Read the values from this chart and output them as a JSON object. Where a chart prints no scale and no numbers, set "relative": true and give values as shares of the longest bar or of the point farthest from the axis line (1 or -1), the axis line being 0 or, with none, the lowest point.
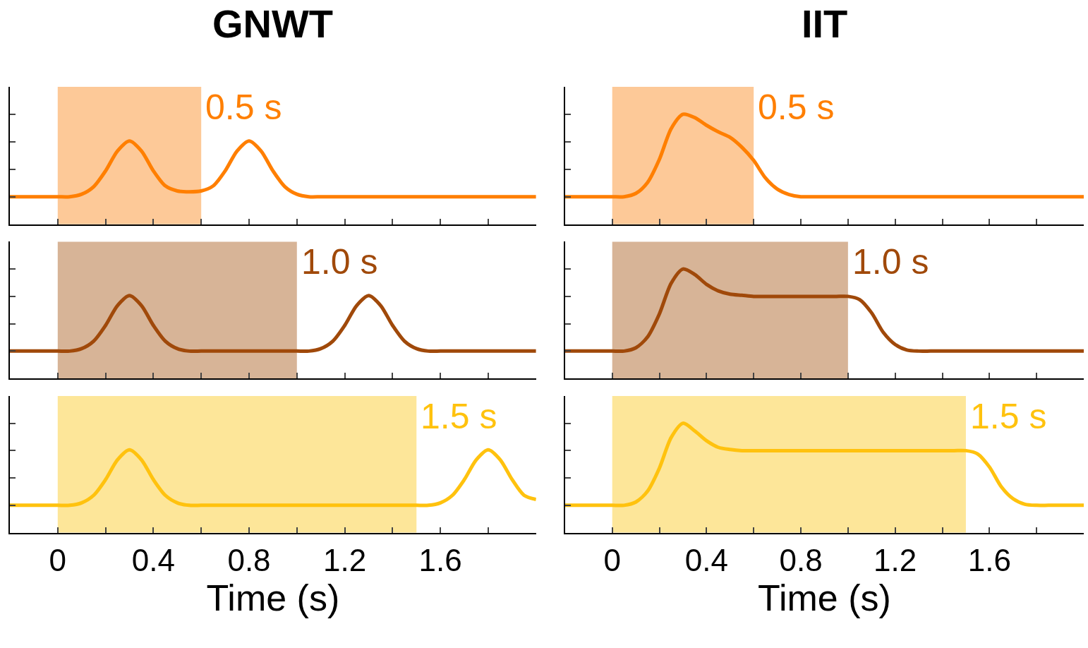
{
  "chart_data": [
    {
      "type": "line",
      "title": "GNWT",
      "relative": true,
      "tick_labels": false,
      "xlim": [
        -0.2,
        2.0
      ],
      "xticks": [
        0,
        {
          "value": 0.2,
          "label": null
        },
        0.4,
        {
          "value": 0.6,
          "label": null
        },
        0.8,
        {
          "value": 1.0,
          "label": null
        },
        1.2,
        {
          "value": 1.4,
          "label": null
        },
        1.6,
        {
          "value": 1.8,
          "label": null
        }
      ],
      "x": [
        -0.2,
        -0.15,
        -0.1,
        -0.05,
        0,
        0.05,
        0.1,
        0.15,
        0.2,
        0.25,
        0.3,
        0.35,
        0.4,
        0.45,
        0.5,
        0.55,
        0.6,
        0.65,
        0.7,
        0.75,
        0.8,
        0.85,
        0.9,
        0.95,
        1.0,
        1.05,
        1.1,
        1.15,
        1.2,
        1.25,
        1.3,
        1.35,
        1.4,
        1.45,
        1.5,
        1.55,
        1.6,
        1.65,
        1.7,
        1.75,
        1.8,
        1.85,
        1.9,
        1.95,
        2.0
      ],
      "series": [
        {
          "color": "#ff7f00",
          "values": [
            0.33,
            0.33,
            0.33,
            0.33,
            0.33,
            0.33,
            0.36,
            0.45,
            0.64,
            0.88,
            1.0,
            0.88,
            0.64,
            0.46,
            0.4,
            0.39,
            0.4,
            0.46,
            0.64,
            0.88,
            1.0,
            0.88,
            0.64,
            0.45,
            0.36,
            0.33,
            0.33,
            0.33,
            0.33,
            0.33,
            0.33,
            0.33,
            0.33,
            0.33,
            0.33,
            0.33,
            0.33,
            0.33,
            0.33,
            0.33,
            0.33,
            0.33,
            0.33,
            0.33,
            0.33
          ]
        }
      ],
      "bands": [
        {
          "axis": "x",
          "from": 0,
          "to": 0.6,
          "label": "0.5 s",
          "color": "#fdc998"
        }
      ]
    },
    {
      "type": "line",
      "title": "IIT",
      "relative": true,
      "tick_labels": false,
      "xlim": [
        -0.2,
        2.0
      ],
      "xticks": [
        0,
        {
          "value": 0.2,
          "label": null
        },
        0.4,
        {
          "value": 0.6,
          "label": null
        },
        0.8,
        {
          "value": 1.0,
          "label": null
        },
        1.2,
        {
          "value": 1.4,
          "label": null
        },
        1.6,
        {
          "value": 1.8,
          "label": null
        }
      ],
      "x": [
        -0.2,
        -0.15,
        -0.1,
        -0.05,
        0,
        0.05,
        0.1,
        0.15,
        0.2,
        0.25,
        0.3,
        0.35,
        0.4,
        0.45,
        0.5,
        0.55,
        0.6,
        0.65,
        0.7,
        0.75,
        0.8,
        0.85,
        0.9,
        0.95,
        1.0,
        1.05,
        1.1,
        1.15,
        1.2,
        1.25,
        1.3,
        1.35,
        1.4,
        1.45,
        1.5,
        1.55,
        1.6,
        1.65,
        1.7,
        1.75,
        1.8,
        1.85,
        1.9,
        1.95,
        2.0
      ],
      "series": [
        {
          "color": "#ff7f00",
          "values": [
            0.25,
            0.25,
            0.25,
            0.25,
            0.25,
            0.25,
            0.28,
            0.38,
            0.59,
            0.87,
            1.0,
            0.97,
            0.9,
            0.84,
            0.79,
            0.7,
            0.58,
            0.42,
            0.32,
            0.27,
            0.25,
            0.25,
            0.25,
            0.25,
            0.25,
            0.25,
            0.25,
            0.25,
            0.25,
            0.25,
            0.25,
            0.25,
            0.25,
            0.25,
            0.25,
            0.25,
            0.25,
            0.25,
            0.25,
            0.25,
            0.25,
            0.25,
            0.25,
            0.25,
            0.25
          ]
        }
      ],
      "bands": [
        {
          "axis": "x",
          "from": 0,
          "to": 0.6,
          "label": "0.5 s",
          "color": "#fdc998"
        }
      ]
    },
    {
      "type": "line",
      "relative": true,
      "tick_labels": false,
      "xlim": [
        -0.2,
        2.0
      ],
      "xticks": [
        0,
        {
          "value": 0.2,
          "label": null
        },
        0.4,
        {
          "value": 0.6,
          "label": null
        },
        0.8,
        {
          "value": 1.0,
          "label": null
        },
        1.2,
        {
          "value": 1.4,
          "label": null
        },
        1.6,
        {
          "value": 1.8,
          "label": null
        }
      ],
      "x": [
        -0.2,
        -0.15,
        -0.1,
        -0.05,
        0,
        0.05,
        0.1,
        0.15,
        0.2,
        0.25,
        0.3,
        0.35,
        0.4,
        0.45,
        0.5,
        0.55,
        0.6,
        0.65,
        0.7,
        0.75,
        0.8,
        0.85,
        0.9,
        0.95,
        1.0,
        1.05,
        1.1,
        1.15,
        1.2,
        1.25,
        1.3,
        1.35,
        1.4,
        1.45,
        1.5,
        1.55,
        1.6,
        1.65,
        1.7,
        1.75,
        1.8,
        1.85,
        1.9,
        1.95,
        2.0
      ],
      "series": [
        {
          "color": "#a0490a",
          "values": [
            0.33,
            0.33,
            0.33,
            0.33,
            0.33,
            0.33,
            0.36,
            0.45,
            0.64,
            0.88,
            1.0,
            0.88,
            0.64,
            0.45,
            0.36,
            0.33,
            0.33,
            0.33,
            0.33,
            0.33,
            0.33,
            0.33,
            0.33,
            0.33,
            0.33,
            0.33,
            0.36,
            0.45,
            0.64,
            0.88,
            1.0,
            0.88,
            0.64,
            0.45,
            0.36,
            0.33,
            0.33,
            0.33,
            0.33,
            0.33,
            0.33,
            0.33,
            0.33,
            0.33,
            0.33
          ]
        }
      ],
      "bands": [
        {
          "axis": "x",
          "from": 0,
          "to": 1.0,
          "label": "1.0 s",
          "color": "#d7b497"
        }
      ]
    },
    {
      "type": "line",
      "relative": true,
      "tick_labels": false,
      "xlim": [
        -0.2,
        2.0
      ],
      "xticks": [
        0,
        {
          "value": 0.2,
          "label": null
        },
        0.4,
        {
          "value": 0.6,
          "label": null
        },
        0.8,
        {
          "value": 1.0,
          "label": null
        },
        1.2,
        {
          "value": 1.4,
          "label": null
        },
        1.6,
        {
          "value": 1.8,
          "label": null
        }
      ],
      "x": [
        -0.2,
        -0.15,
        -0.1,
        -0.05,
        0,
        0.05,
        0.1,
        0.15,
        0.2,
        0.25,
        0.3,
        0.35,
        0.4,
        0.45,
        0.5,
        0.55,
        0.6,
        0.65,
        0.7,
        0.75,
        0.8,
        0.85,
        0.9,
        0.95,
        1.0,
        1.05,
        1.1,
        1.15,
        1.2,
        1.25,
        1.3,
        1.35,
        1.4,
        1.45,
        1.5,
        1.55,
        1.6,
        1.65,
        1.7,
        1.75,
        1.8,
        1.85,
        1.9,
        1.95,
        2.0
      ],
      "series": [
        {
          "color": "#a0490a",
          "values": [
            0.25,
            0.25,
            0.25,
            0.25,
            0.25,
            0.25,
            0.28,
            0.38,
            0.59,
            0.87,
            1.0,
            0.95,
            0.86,
            0.8,
            0.77,
            0.76,
            0.75,
            0.75,
            0.75,
            0.75,
            0.75,
            0.75,
            0.75,
            0.75,
            0.75,
            0.72,
            0.6,
            0.42,
            0.31,
            0.26,
            0.25,
            0.25,
            0.25,
            0.25,
            0.25,
            0.25,
            0.25,
            0.25,
            0.25,
            0.25,
            0.25,
            0.25,
            0.25,
            0.25,
            0.25
          ]
        }
      ],
      "bands": [
        {
          "axis": "x",
          "from": 0,
          "to": 1.0,
          "label": "1.0 s",
          "color": "#d7b497"
        }
      ]
    },
    {
      "type": "line",
      "xlabel": "Time (s)",
      "relative": true,
      "tick_labels": "x",
      "xlim": [
        -0.2,
        2.0
      ],
      "xticks": [
        0,
        {
          "value": 0.2,
          "label": null
        },
        0.4,
        {
          "value": 0.6,
          "label": null
        },
        0.8,
        {
          "value": 1.0,
          "label": null
        },
        1.2,
        {
          "value": 1.4,
          "label": null
        },
        1.6,
        {
          "value": 1.8,
          "label": null
        }
      ],
      "x": [
        -0.2,
        -0.15,
        -0.1,
        -0.05,
        0,
        0.05,
        0.1,
        0.15,
        0.2,
        0.25,
        0.3,
        0.35,
        0.4,
        0.45,
        0.5,
        0.55,
        0.6,
        0.65,
        0.7,
        0.75,
        0.8,
        0.85,
        0.9,
        0.95,
        1.0,
        1.05,
        1.1,
        1.15,
        1.2,
        1.25,
        1.3,
        1.35,
        1.4,
        1.45,
        1.5,
        1.55,
        1.6,
        1.65,
        1.7,
        1.75,
        1.8,
        1.85,
        1.9,
        1.95,
        2.0
      ],
      "series": [
        {
          "color": "#ffc20e",
          "values": [
            0.33,
            0.33,
            0.33,
            0.33,
            0.33,
            0.33,
            0.36,
            0.45,
            0.64,
            0.88,
            1.0,
            0.88,
            0.64,
            0.45,
            0.36,
            0.33,
            0.33,
            0.33,
            0.33,
            0.33,
            0.33,
            0.33,
            0.33,
            0.33,
            0.33,
            0.33,
            0.33,
            0.33,
            0.33,
            0.33,
            0.33,
            0.33,
            0.33,
            0.33,
            0.33,
            0.33,
            0.36,
            0.45,
            0.64,
            0.88,
            1.0,
            0.88,
            0.64,
            0.45,
            0.4
          ]
        }
      ],
      "bands": [
        {
          "axis": "x",
          "from": 0,
          "to": 1.5,
          "label": "1.5 s",
          "color": "#fde699"
        }
      ]
    },
    {
      "type": "line",
      "xlabel": "Time (s)",
      "relative": true,
      "tick_labels": "x",
      "xlim": [
        -0.2,
        2.0
      ],
      "xticks": [
        0,
        {
          "value": 0.2,
          "label": null
        },
        0.4,
        {
          "value": 0.6,
          "label": null
        },
        0.8,
        {
          "value": 1.0,
          "label": null
        },
        1.2,
        {
          "value": 1.4,
          "label": null
        },
        1.6,
        {
          "value": 1.8,
          "label": null
        }
      ],
      "x": [
        -0.2,
        -0.15,
        -0.1,
        -0.05,
        0,
        0.05,
        0.1,
        0.15,
        0.2,
        0.25,
        0.3,
        0.35,
        0.4,
        0.45,
        0.5,
        0.55,
        0.6,
        0.65,
        0.7,
        0.75,
        0.8,
        0.85,
        0.9,
        0.95,
        1.0,
        1.05,
        1.1,
        1.15,
        1.2,
        1.25,
        1.3,
        1.35,
        1.4,
        1.45,
        1.5,
        1.55,
        1.6,
        1.65,
        1.7,
        1.75,
        1.8,
        1.85,
        1.9,
        1.95,
        2.0
      ],
      "series": [
        {
          "color": "#ffc20e",
          "values": [
            0.25,
            0.25,
            0.25,
            0.25,
            0.25,
            0.25,
            0.28,
            0.38,
            0.59,
            0.87,
            1.0,
            0.93,
            0.84,
            0.78,
            0.76,
            0.75,
            0.75,
            0.75,
            0.75,
            0.75,
            0.75,
            0.75,
            0.75,
            0.75,
            0.75,
            0.75,
            0.75,
            0.75,
            0.75,
            0.75,
            0.75,
            0.75,
            0.75,
            0.75,
            0.75,
            0.72,
            0.6,
            0.42,
            0.31,
            0.26,
            0.25,
            0.25,
            0.25,
            0.25,
            0.25
          ]
        }
      ],
      "bands": [
        {
          "axis": "x",
          "from": 0,
          "to": 1.5,
          "label": "1.5 s",
          "color": "#fde699"
        }
      ]
    }
  ]
}
